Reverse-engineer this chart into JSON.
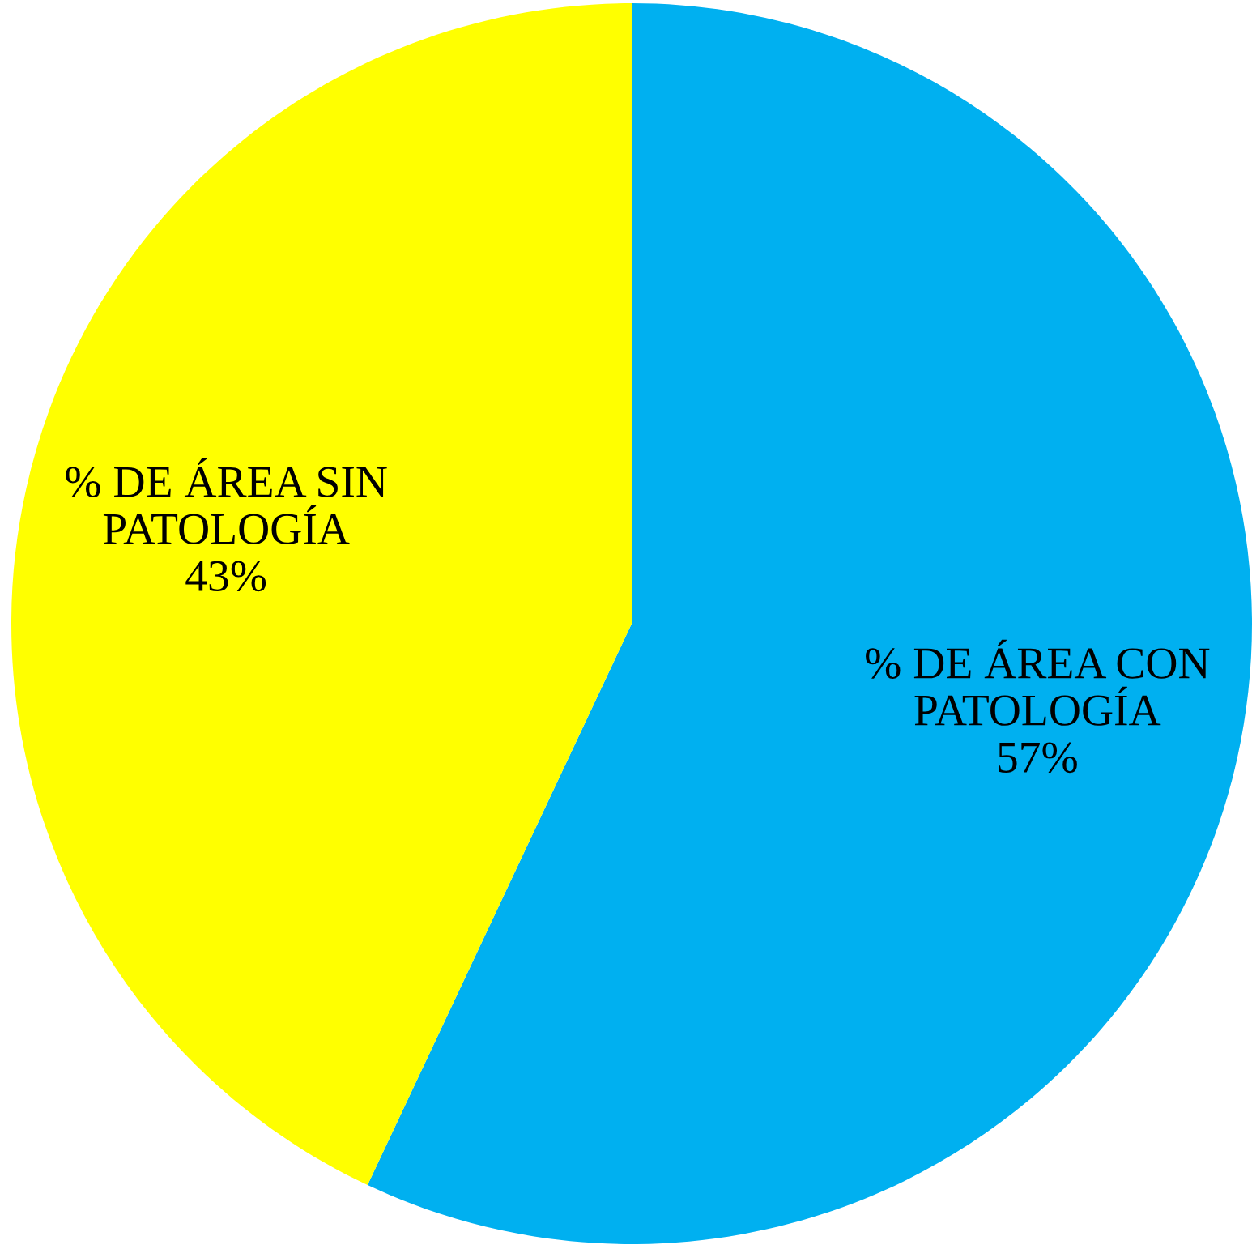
{
  "chart_data": {
    "type": "pie",
    "categories": [
      "% DE ÁREA CON\nPATOLOGÍA",
      "% DE ÁREA SIN\nPATOLOGÍA"
    ],
    "values": [
      57,
      43
    ],
    "value_labels": [
      "57%",
      "43%"
    ],
    "colors": [
      "#00b0f0",
      "#ffff00"
    ],
    "legend": false
  }
}
